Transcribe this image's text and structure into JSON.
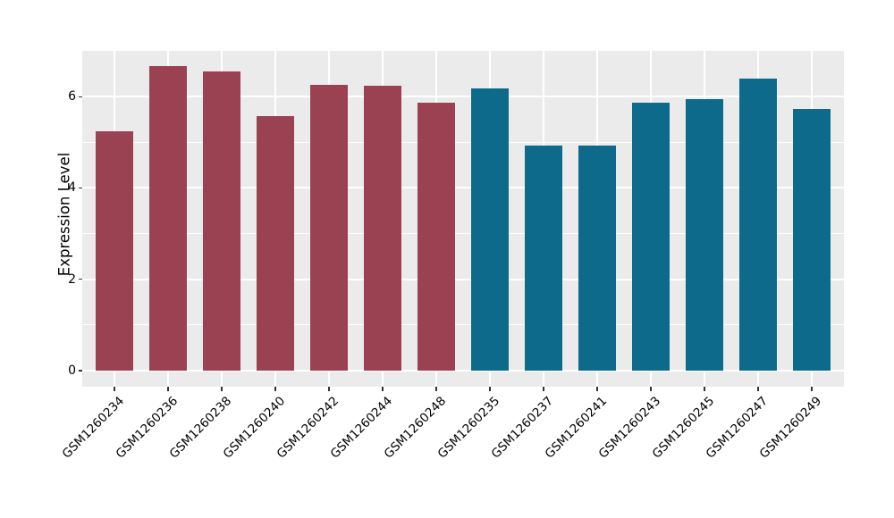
{
  "figure": {
    "background_color": "#ffffff",
    "panel_background_color": "#ebebeb",
    "grid_color": "#ffffff",
    "tick_mark_color": "#333333",
    "text_color": "#000000"
  },
  "chart_data": {
    "type": "bar",
    "title": "",
    "xlabel": "",
    "ylabel": "Expression Level",
    "ylim": [
      0,
      7
    ],
    "yticks": [
      0,
      2,
      4,
      6
    ],
    "yticks_minor": [
      1,
      3,
      5
    ],
    "grid": "on",
    "legend_position": "none",
    "categories": [
      "GSM1260234",
      "GSM1260236",
      "GSM1260238",
      "GSM1260240",
      "GSM1260242",
      "GSM1260244",
      "GSM1260248",
      "GSM1260235",
      "GSM1260237",
      "GSM1260241",
      "GSM1260243",
      "GSM1260245",
      "GSM1260247",
      "GSM1260249"
    ],
    "values": [
      5.24,
      6.67,
      6.56,
      5.58,
      6.26,
      6.24,
      5.86,
      6.18,
      4.93,
      4.93,
      5.87,
      5.95,
      6.4,
      5.73
    ],
    "bar_colors": [
      "#9a4252",
      "#9a4252",
      "#9a4252",
      "#9a4252",
      "#9a4252",
      "#9a4252",
      "#9a4252",
      "#0e6a8b",
      "#0e6a8b",
      "#0e6a8b",
      "#0e6a8b",
      "#0e6a8b",
      "#0e6a8b",
      "#0e6a8b"
    ],
    "groups": [
      {
        "color": "#9a4252",
        "categories": [
          "GSM1260234",
          "GSM1260236",
          "GSM1260238",
          "GSM1260240",
          "GSM1260242",
          "GSM1260244",
          "GSM1260248"
        ]
      },
      {
        "color": "#0e6a8b",
        "categories": [
          "GSM1260235",
          "GSM1260237",
          "GSM1260241",
          "GSM1260243",
          "GSM1260245",
          "GSM1260247",
          "GSM1260249"
        ]
      }
    ]
  }
}
